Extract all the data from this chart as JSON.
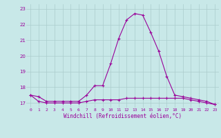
{
  "hours": [
    0,
    1,
    2,
    3,
    4,
    5,
    6,
    7,
    8,
    9,
    10,
    11,
    12,
    13,
    14,
    15,
    16,
    17,
    18,
    19,
    20,
    21,
    22,
    23
  ],
  "temperature": [
    17.5,
    17.4,
    17.1,
    17.1,
    17.1,
    17.1,
    17.1,
    17.5,
    18.1,
    18.1,
    19.5,
    21.1,
    22.3,
    22.7,
    22.6,
    21.5,
    20.3,
    18.7,
    17.5,
    17.4,
    17.3,
    17.2,
    17.1,
    16.9
  ],
  "windchill": [
    17.5,
    17.1,
    17.0,
    17.0,
    17.0,
    17.0,
    17.0,
    17.1,
    17.2,
    17.2,
    17.2,
    17.2,
    17.3,
    17.3,
    17.3,
    17.3,
    17.3,
    17.3,
    17.3,
    17.3,
    17.2,
    17.1,
    17.0,
    16.9
  ],
  "line_color": "#990099",
  "bg_color": "#c8e8e8",
  "grid_color": "#aacccc",
  "xlabel": "Windchill (Refroidissement éolien,°C)",
  "ylim": [
    16.7,
    23.3
  ],
  "yticks": [
    17,
    18,
    19,
    20,
    21,
    22,
    23
  ],
  "xticks": [
    0,
    1,
    2,
    3,
    4,
    5,
    6,
    7,
    8,
    9,
    10,
    11,
    12,
    13,
    14,
    15,
    16,
    17,
    18,
    19,
    20,
    21,
    22,
    23
  ],
  "xlabels": [
    "0",
    "1",
    "2",
    "3",
    "4",
    "5",
    "6",
    "7",
    "8",
    "9",
    "10",
    "11",
    "12",
    "13",
    "14",
    "15",
    "16",
    "17",
    "18",
    "19",
    "20",
    "21",
    "22",
    "23"
  ]
}
